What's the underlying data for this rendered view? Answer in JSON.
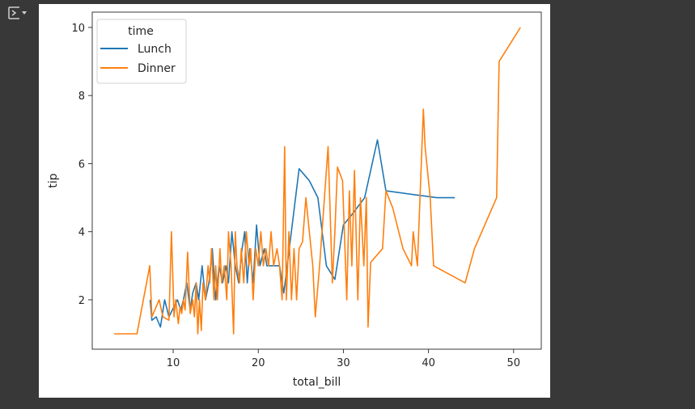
{
  "toolbar": {
    "output_icon": "output-toggle-icon"
  },
  "chart_data": {
    "type": "line",
    "title": "",
    "xlabel": "total_bill",
    "ylabel": "tip",
    "xlim": [
      0.49,
      53.25
    ],
    "ylim": [
      0.55,
      10.45
    ],
    "xticks": [
      10,
      20,
      30,
      40,
      50
    ],
    "yticks": [
      2,
      4,
      6,
      8,
      10
    ],
    "grid": false,
    "legend": {
      "title": "time",
      "location": "upper-left"
    },
    "series": [
      {
        "name": "Lunch",
        "color": "#1f77b4",
        "x": [
          7.3,
          7.5,
          8.0,
          8.5,
          9.0,
          9.5,
          10.1,
          10.5,
          10.9,
          11.2,
          11.6,
          12.0,
          12.3,
          12.7,
          13.0,
          13.4,
          13.8,
          14.2,
          14.6,
          15.0,
          15.4,
          15.8,
          16.2,
          16.5,
          16.9,
          17.3,
          17.7,
          18.1,
          18.4,
          18.7,
          19.0,
          19.4,
          19.8,
          20.2,
          20.7,
          21.0,
          22.5,
          23.0,
          24.8,
          26.0,
          27.0,
          28.0,
          29.0,
          30.0,
          31.0,
          32.5,
          34.0,
          35.0,
          41.0,
          43.1
        ],
        "y": [
          2.0,
          1.4,
          1.5,
          1.2,
          2.0,
          1.5,
          1.8,
          2.0,
          1.7,
          2.0,
          2.5,
          1.7,
          2.2,
          2.5,
          2.0,
          3.0,
          2.0,
          2.5,
          3.5,
          2.0,
          3.0,
          2.5,
          3.0,
          2.5,
          4.0,
          3.0,
          2.5,
          3.5,
          4.0,
          2.5,
          3.5,
          2.5,
          4.2,
          3.0,
          3.5,
          3.0,
          3.0,
          2.2,
          5.85,
          5.5,
          5.0,
          3.0,
          2.6,
          4.2,
          4.5,
          5.0,
          6.7,
          5.2,
          5.0,
          5.0
        ]
      },
      {
        "name": "Dinner",
        "color": "#ff7f0e",
        "x": [
          3.07,
          5.75,
          7.25,
          7.5,
          8.35,
          8.8,
          9.5,
          9.8,
          10.1,
          10.3,
          10.6,
          10.8,
          11.0,
          11.2,
          11.4,
          11.7,
          12.0,
          12.3,
          12.5,
          12.7,
          12.9,
          13.1,
          13.3,
          13.5,
          13.8,
          14.1,
          14.3,
          14.5,
          14.8,
          15.0,
          15.2,
          15.5,
          15.7,
          16.0,
          16.3,
          16.5,
          16.8,
          17.1,
          17.3,
          17.5,
          17.8,
          18.0,
          18.3,
          18.6,
          18.9,
          19.1,
          19.4,
          19.7,
          20.0,
          20.3,
          20.6,
          20.9,
          21.2,
          21.5,
          21.8,
          22.2,
          22.5,
          22.8,
          23.1,
          23.3,
          23.6,
          23.9,
          24.2,
          24.5,
          24.8,
          25.2,
          25.6,
          26.0,
          26.4,
          26.7,
          27.2,
          28.2,
          28.7,
          29.0,
          29.3,
          29.9,
          30.4,
          30.7,
          31.0,
          31.3,
          31.7,
          32.0,
          32.4,
          32.7,
          32.9,
          33.2,
          34.6,
          35.0,
          35.8,
          37.0,
          38.0,
          38.2,
          38.7,
          39.4,
          39.6,
          40.2,
          40.6,
          44.3,
          45.4,
          48.0,
          48.3,
          50.8
        ],
        "y": [
          1.0,
          1.0,
          3.0,
          1.5,
          2.0,
          1.5,
          1.4,
          4.0,
          1.5,
          2.0,
          1.3,
          1.8,
          1.6,
          2.0,
          1.7,
          3.4,
          1.6,
          2.0,
          1.5,
          2.5,
          1.0,
          2.0,
          1.1,
          2.5,
          2.0,
          3.0,
          2.5,
          3.5,
          2.0,
          3.0,
          2.0,
          3.5,
          2.5,
          3.0,
          2.0,
          4.0,
          3.0,
          1.0,
          4.0,
          3.0,
          2.5,
          3.5,
          2.5,
          4.0,
          3.0,
          3.5,
          2.0,
          3.5,
          3.0,
          4.0,
          3.0,
          3.5,
          3.0,
          4.0,
          3.0,
          3.5,
          3.0,
          2.0,
          6.5,
          2.0,
          4.0,
          2.0,
          3.5,
          2.0,
          3.5,
          3.7,
          5.0,
          4.0,
          3.0,
          1.5,
          3.0,
          6.5,
          2.5,
          4.0,
          5.9,
          5.5,
          2.0,
          5.2,
          3.0,
          5.8,
          2.0,
          5.0,
          3.0,
          5.0,
          1.2,
          3.1,
          3.5,
          5.2,
          4.7,
          3.5,
          3.0,
          4.0,
          3.0,
          7.6,
          6.5,
          5.0,
          3.0,
          2.5,
          3.5,
          5.0,
          9.0,
          10.0
        ]
      }
    ]
  }
}
